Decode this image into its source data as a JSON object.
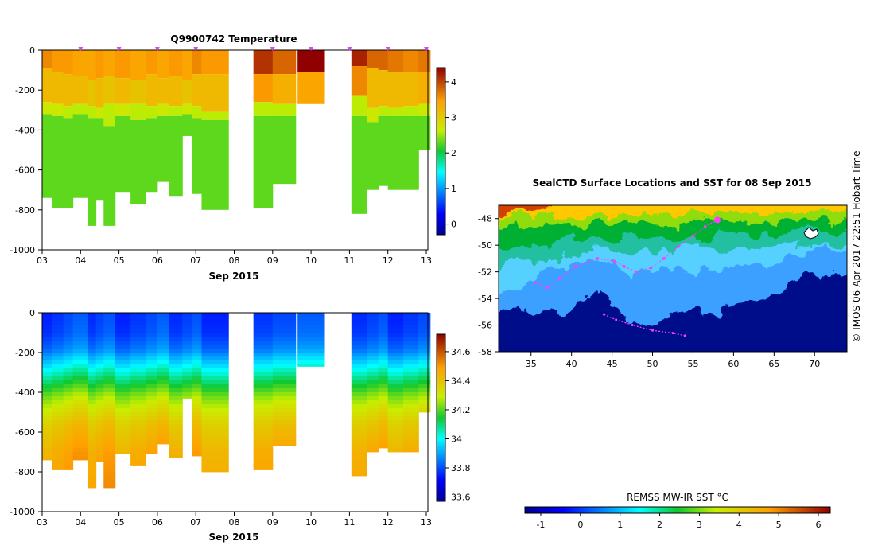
{
  "figure_title": "Q9900742  Temperature",
  "side_note": "© IMOS 06-Apr-2017 22:51 Hobart Time",
  "chart_data": [
    {
      "type": "heatmap",
      "title": "Q9900742  Temperature",
      "xlabel": "Sep 2015",
      "ylabel": "",
      "x_ticks": [
        "03",
        "04",
        "05",
        "06",
        "07",
        "08",
        "09",
        "10",
        "11",
        "12",
        "13"
      ],
      "y_ticks": [
        0,
        -200,
        -400,
        -600,
        -800,
        -1000
      ],
      "ylim": [
        -1000,
        0
      ],
      "colorbar_ticks": [
        0,
        1,
        2,
        3,
        4
      ],
      "colorbar_range": [
        -0.3,
        4.4
      ],
      "profile_markers": [
        "04",
        "05",
        "06",
        "07",
        "09",
        "10",
        "11",
        "12",
        "13"
      ],
      "profiles": [
        {
          "day": 3.0,
          "w": 0.25,
          "bottom": -740,
          "layers": [
            [
              0,
              -90,
              3.6
            ],
            [
              -90,
              -260,
              3.2
            ],
            [
              -260,
              -320,
              2.7
            ],
            [
              -320,
              -740,
              2.3
            ]
          ]
        },
        {
          "day": 3.25,
          "w": 0.3,
          "bottom": -790,
          "layers": [
            [
              0,
              -110,
              3.5
            ],
            [
              -110,
              -270,
              3.2
            ],
            [
              -270,
              -330,
              2.7
            ],
            [
              -330,
              -790,
              2.3
            ]
          ]
        },
        {
          "day": 3.55,
          "w": 0.25,
          "bottom": -790,
          "layers": [
            [
              0,
              -120,
              3.5
            ],
            [
              -120,
              -280,
              3.2
            ],
            [
              -280,
              -340,
              2.6
            ],
            [
              -340,
              -790,
              2.3
            ]
          ]
        },
        {
          "day": 3.8,
          "w": 0.4,
          "bottom": -740,
          "layers": [
            [
              0,
              -130,
              3.4
            ],
            [
              -130,
              -270,
              3.2
            ],
            [
              -270,
              -320,
              2.6
            ],
            [
              -320,
              -740,
              2.3
            ]
          ]
        },
        {
          "day": 4.2,
          "w": 0.2,
          "bottom": -880,
          "layers": [
            [
              0,
              -150,
              3.4
            ],
            [
              -150,
              -280,
              3.1
            ],
            [
              -280,
              -340,
              2.6
            ],
            [
              -340,
              -880,
              2.3
            ]
          ]
        },
        {
          "day": 4.4,
          "w": 0.2,
          "bottom": -750,
          "layers": [
            [
              0,
              -140,
              3.5
            ],
            [
              -140,
              -290,
              3.2
            ],
            [
              -290,
              -340,
              2.7
            ],
            [
              -340,
              -750,
              2.3
            ]
          ]
        },
        {
          "day": 4.6,
          "w": 0.3,
          "bottom": -880,
          "layers": [
            [
              0,
              -130,
              3.4
            ],
            [
              -130,
              -270,
              3.1
            ],
            [
              -270,
              -380,
              2.6
            ],
            [
              -380,
              -880,
              2.3
            ]
          ]
        },
        {
          "day": 4.9,
          "w": 0.4,
          "bottom": -710,
          "layers": [
            [
              0,
              -140,
              3.5
            ],
            [
              -140,
              -270,
              3.2
            ],
            [
              -270,
              -330,
              2.7
            ],
            [
              -330,
              -710,
              2.3
            ]
          ]
        },
        {
          "day": 5.3,
          "w": 0.4,
          "bottom": -770,
          "layers": [
            [
              0,
              -150,
              3.4
            ],
            [
              -150,
              -270,
              3.1
            ],
            [
              -270,
              -350,
              2.6
            ],
            [
              -350,
              -770,
              2.3
            ]
          ]
        },
        {
          "day": 5.7,
          "w": 0.3,
          "bottom": -710,
          "layers": [
            [
              0,
              -120,
              3.5
            ],
            [
              -120,
              -280,
              3.2
            ],
            [
              -280,
              -340,
              2.6
            ],
            [
              -340,
              -710,
              2.3
            ]
          ]
        },
        {
          "day": 6.0,
          "w": 0.3,
          "bottom": -660,
          "layers": [
            [
              0,
              -140,
              3.4
            ],
            [
              -140,
              -270,
              3.2
            ],
            [
              -270,
              -330,
              2.7
            ],
            [
              -330,
              -660,
              2.3
            ]
          ]
        },
        {
          "day": 6.3,
          "w": 0.35,
          "bottom": -730,
          "layers": [
            [
              0,
              -130,
              3.5
            ],
            [
              -130,
              -280,
              3.2
            ],
            [
              -280,
              -330,
              2.6
            ],
            [
              -330,
              -730,
              2.3
            ]
          ]
        },
        {
          "day": 6.65,
          "w": 0.25,
          "bottom": -430,
          "layers": [
            [
              0,
              -150,
              3.4
            ],
            [
              -150,
              -270,
              3.1
            ],
            [
              -270,
              -320,
              2.7
            ],
            [
              -320,
              -430,
              2.3
            ]
          ]
        },
        {
          "day": 6.9,
          "w": 0.25,
          "bottom": -720,
          "layers": [
            [
              0,
              -120,
              3.6
            ],
            [
              -120,
              -280,
              3.2
            ],
            [
              -280,
              -340,
              2.6
            ],
            [
              -340,
              -720,
              2.3
            ]
          ]
        },
        {
          "day": 7.15,
          "w": 0.7,
          "bottom": -800,
          "layers": [
            [
              0,
              -120,
              3.5
            ],
            [
              -120,
              -310,
              3.2
            ],
            [
              -310,
              -350,
              2.6
            ],
            [
              -350,
              -800,
              2.3
            ]
          ]
        },
        {
          "day": 8.5,
          "w": 0.5,
          "bottom": -790,
          "layers": [
            [
              0,
              -120,
              4.1
            ],
            [
              -120,
              -260,
              3.5
            ],
            [
              -260,
              -330,
              2.6
            ],
            [
              -330,
              -790,
              2.3
            ]
          ]
        },
        {
          "day": 9.0,
          "w": 0.6,
          "bottom": -670,
          "layers": [
            [
              0,
              -120,
              3.8
            ],
            [
              -120,
              -270,
              3.3
            ],
            [
              -270,
              -330,
              2.6
            ],
            [
              -330,
              -670,
              2.3
            ]
          ]
        },
        {
          "day": 9.65,
          "w": 0.7,
          "bottom": -270,
          "layers": [
            [
              0,
              -110,
              4.4
            ],
            [
              -110,
              -270,
              3.4
            ]
          ]
        },
        {
          "day": 11.05,
          "w": 0.4,
          "bottom": -820,
          "layers": [
            [
              0,
              -80,
              4.2
            ],
            [
              -80,
              -230,
              3.6
            ],
            [
              -230,
              -330,
              2.6
            ],
            [
              -330,
              -820,
              2.3
            ]
          ]
        },
        {
          "day": 11.45,
          "w": 0.3,
          "bottom": -700,
          "layers": [
            [
              0,
              -90,
              3.8
            ],
            [
              -90,
              -290,
              3.2
            ],
            [
              -290,
              -360,
              2.7
            ],
            [
              -360,
              -700,
              2.3
            ]
          ]
        },
        {
          "day": 11.75,
          "w": 0.25,
          "bottom": -680,
          "layers": [
            [
              0,
              -100,
              3.8
            ],
            [
              -100,
              -280,
              3.2
            ],
            [
              -280,
              -330,
              2.6
            ],
            [
              -330,
              -680,
              2.3
            ]
          ]
        },
        {
          "day": 12.0,
          "w": 0.4,
          "bottom": -700,
          "layers": [
            [
              0,
              -110,
              3.7
            ],
            [
              -110,
              -290,
              3.2
            ],
            [
              -290,
              -330,
              2.6
            ],
            [
              -330,
              -700,
              2.3
            ]
          ]
        },
        {
          "day": 12.4,
          "w": 0.4,
          "bottom": -700,
          "layers": [
            [
              0,
              -110,
              3.6
            ],
            [
              -110,
              -280,
              3.2
            ],
            [
              -280,
              -330,
              2.6
            ],
            [
              -330,
              -700,
              2.3
            ]
          ]
        },
        {
          "day": 12.8,
          "w": 0.3,
          "bottom": -500,
          "layers": [
            [
              0,
              -110,
              3.7
            ],
            [
              -110,
              -270,
              3.3
            ],
            [
              -270,
              -330,
              2.7
            ],
            [
              -330,
              -500,
              2.3
            ]
          ]
        }
      ]
    },
    {
      "type": "heatmap",
      "title": "",
      "xlabel": "Sep 2015",
      "ylabel": "",
      "x_ticks": [
        "03",
        "04",
        "05",
        "06",
        "07",
        "08",
        "09",
        "10",
        "11",
        "12",
        "13"
      ],
      "y_ticks": [
        0,
        -200,
        -400,
        -600,
        -800,
        -1000
      ],
      "ylim": [
        -1000,
        0
      ],
      "colorbar_ticks": [
        33.6,
        33.8,
        34,
        34.2,
        34.4,
        34.6
      ],
      "colorbar_labels": [
        "33.6",
        "33.8",
        "34",
        "34.2",
        "34.4",
        "34.6"
      ],
      "colorbar_range": [
        33.57,
        34.72
      ],
      "depth_profile": [
        [
          0,
          33.78
        ],
        [
          -100,
          33.8
        ],
        [
          -180,
          33.86
        ],
        [
          -240,
          33.95
        ],
        [
          -300,
          34.05
        ],
        [
          -360,
          34.15
        ],
        [
          -420,
          34.25
        ],
        [
          -480,
          34.32
        ],
        [
          -560,
          34.4
        ],
        [
          -700,
          34.47
        ],
        [
          -900,
          34.5
        ]
      ]
    },
    {
      "type": "heatmap",
      "title": "SealCTD Surface Locations and SST for 08 Sep 2015",
      "xlabel": "",
      "ylabel": "",
      "x_ticks": [
        35,
        40,
        45,
        50,
        55,
        60,
        65,
        70
      ],
      "y_ticks": [
        -48,
        -50,
        -52,
        -54,
        -56,
        -58
      ],
      "xlim": [
        31,
        74
      ],
      "ylim": [
        -58,
        -47
      ],
      "colorbar_label": "REMSS MW-IR SST °C",
      "colorbar_ticks": [
        -1,
        0,
        1,
        2,
        3,
        4,
        5,
        6
      ],
      "colorbar_range": [
        -1.4,
        6.3
      ],
      "seal_track": [
        [
          58.0,
          -48.1
        ],
        [
          56.5,
          -48.6
        ],
        [
          55.0,
          -49.3
        ],
        [
          53.2,
          -50.1
        ],
        [
          51.4,
          -51.0
        ],
        [
          49.8,
          -51.7
        ],
        [
          48.0,
          -52.0
        ],
        [
          46.5,
          -51.6
        ],
        [
          45.3,
          -51.2
        ],
        [
          43.2,
          -51.0
        ],
        [
          40.5,
          -51.6
        ],
        [
          38.5,
          -52.5
        ],
        [
          37.0,
          -53.2
        ],
        [
          35.5,
          -52.8
        ]
      ],
      "seal_track_south": [
        [
          44.0,
          -55.2
        ],
        [
          45.5,
          -55.6
        ],
        [
          47.5,
          -56.0
        ],
        [
          50.0,
          -56.4
        ],
        [
          52.5,
          -56.6
        ],
        [
          54.0,
          -56.8
        ]
      ],
      "seal_current_position": [
        58.0,
        -48.1
      ]
    }
  ]
}
